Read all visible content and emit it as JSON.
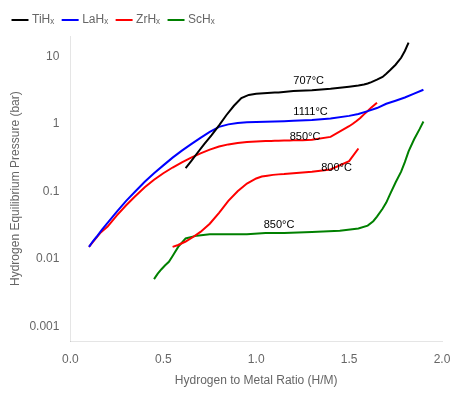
{
  "chart_data": {
    "type": "line",
    "xlabel": "Hydrogen to Metal Ratio (H/M)",
    "ylabel": "Hydrogen Equilibrium Pressure (bar)",
    "log": "y",
    "grid": false,
    "legend": "upper left",
    "xlim": [
      0.0,
      2.0
    ],
    "xticks": [
      {
        "value": 0.0,
        "label": "0.0"
      },
      {
        "value": 0.5,
        "label": "0.5"
      },
      {
        "value": 1.0,
        "label": "1.0"
      },
      {
        "value": 1.5,
        "label": "1.5"
      },
      {
        "value": 2.0,
        "label": "2.0"
      }
    ],
    "ylim": [
      0.0006,
      20
    ],
    "yticks": [
      0.001,
      0.01,
      0.1,
      1,
      10
    ],
    "annotations": [
      {
        "text": "707°C",
        "x": 1.2,
        "y": 3.6,
        "color": "black"
      },
      {
        "text": "1111°C",
        "x": 1.2,
        "y": 1.22,
        "color": "black"
      },
      {
        "text": "850°C",
        "x": 1.18,
        "y": 0.52,
        "color": "black"
      },
      {
        "text": "800°C",
        "x": 1.35,
        "y": 0.185,
        "color": "black"
      },
      {
        "text": "850°C",
        "x": 1.04,
        "y": 0.026,
        "color": "black"
      }
    ],
    "series": [
      {
        "name": "TiHₓ",
        "color": "black",
        "x": [
          0.62,
          0.65,
          0.68,
          0.72,
          0.76,
          0.8,
          0.84,
          0.88,
          0.92,
          0.96,
          1.0,
          1.02,
          1.04,
          1.06,
          1.08,
          1.1,
          1.12,
          1.2,
          1.3,
          1.4,
          1.5,
          1.55,
          1.58,
          1.6,
          1.62,
          1.65,
          1.68,
          1.7,
          1.72,
          1.75,
          1.78,
          1.8,
          1.82
        ],
        "values": [
          0.22,
          0.28,
          0.36,
          0.5,
          0.68,
          0.95,
          1.35,
          1.85,
          2.4,
          2.68,
          2.78,
          2.82,
          2.84,
          2.86,
          2.88,
          2.9,
          2.92,
          3.05,
          3.15,
          3.3,
          3.55,
          3.7,
          3.82,
          3.95,
          4.15,
          4.5,
          4.95,
          5.5,
          6.2,
          7.5,
          9.5,
          12.0,
          16.0
        ]
      },
      {
        "name": "LaHₓ",
        "color": "blue",
        "x": [
          0.1,
          0.12,
          0.14,
          0.17,
          0.2,
          0.25,
          0.3,
          0.35,
          0.4,
          0.45,
          0.5,
          0.55,
          0.6,
          0.65,
          0.7,
          0.75,
          0.8,
          0.85,
          0.9,
          0.95,
          1.0,
          1.05,
          1.1,
          1.15,
          1.2,
          1.3,
          1.4,
          1.5,
          1.55,
          1.6,
          1.65,
          1.7,
          1.75,
          1.8,
          1.85,
          1.9
        ],
        "values": [
          0.015,
          0.018,
          0.021,
          0.027,
          0.034,
          0.05,
          0.072,
          0.1,
          0.138,
          0.185,
          0.242,
          0.315,
          0.4,
          0.5,
          0.62,
          0.76,
          0.9,
          0.98,
          1.03,
          1.055,
          1.065,
          1.075,
          1.085,
          1.095,
          1.105,
          1.14,
          1.2,
          1.31,
          1.4,
          1.54,
          1.71,
          1.98,
          2.2,
          2.45,
          2.8,
          3.2
        ]
      },
      {
        "name": "ZrHₓ",
        "color": "red",
        "x": [
          0.1,
          0.13,
          0.16,
          0.2,
          0.25,
          0.3,
          0.35,
          0.4,
          0.45,
          0.5,
          0.55,
          0.6,
          0.65,
          0.7,
          0.75,
          0.8,
          0.85,
          0.9,
          0.95,
          1.0,
          1.05,
          1.08,
          1.1,
          1.12,
          1.15,
          1.18,
          1.2,
          1.25,
          1.3,
          1.4,
          1.5,
          1.52,
          1.54,
          1.56,
          1.58,
          1.6,
          1.62,
          1.65
        ],
        "values": [
          0.015,
          0.019,
          0.024,
          0.03,
          0.044,
          0.062,
          0.085,
          0.115,
          0.148,
          0.185,
          0.225,
          0.268,
          0.315,
          0.365,
          0.415,
          0.46,
          0.495,
          0.52,
          0.538,
          0.548,
          0.555,
          0.558,
          0.56,
          0.562,
          0.564,
          0.566,
          0.568,
          0.572,
          0.58,
          0.64,
          0.92,
          1.0,
          1.1,
          1.22,
          1.38,
          1.55,
          1.75,
          2.05
        ]
      },
      {
        "color": "red",
        "x": [
          0.55,
          0.58,
          0.62,
          0.66,
          0.7,
          0.75,
          0.8,
          0.85,
          0.9,
          0.95,
          1.0,
          1.03,
          1.06,
          1.09,
          1.12,
          1.15,
          1.2,
          1.3,
          1.4,
          1.5,
          1.55
        ],
        "values": [
          0.015,
          0.016,
          0.018,
          0.021,
          0.025,
          0.033,
          0.048,
          0.072,
          0.1,
          0.13,
          0.155,
          0.165,
          0.17,
          0.175,
          0.178,
          0.18,
          0.185,
          0.195,
          0.21,
          0.28,
          0.43
        ]
      },
      {
        "name": "ScHₓ",
        "color": "green",
        "x": [
          0.45,
          0.47,
          0.49,
          0.51,
          0.53,
          0.55,
          0.58,
          0.62,
          0.68,
          0.75,
          0.85,
          0.95,
          1.05,
          1.15,
          1.3,
          1.45,
          1.55,
          1.6,
          1.63,
          1.65,
          1.68,
          1.7,
          1.72,
          1.75,
          1.78,
          1.8,
          1.82,
          1.85,
          1.88,
          1.9
        ],
        "values": [
          0.005,
          0.006,
          0.007,
          0.008,
          0.009,
          0.011,
          0.015,
          0.02,
          0.022,
          0.023,
          0.023,
          0.023,
          0.024,
          0.024,
          0.025,
          0.026,
          0.028,
          0.031,
          0.036,
          0.042,
          0.055,
          0.068,
          0.09,
          0.135,
          0.195,
          0.27,
          0.39,
          0.59,
          0.84,
          1.08
        ]
      }
    ]
  }
}
